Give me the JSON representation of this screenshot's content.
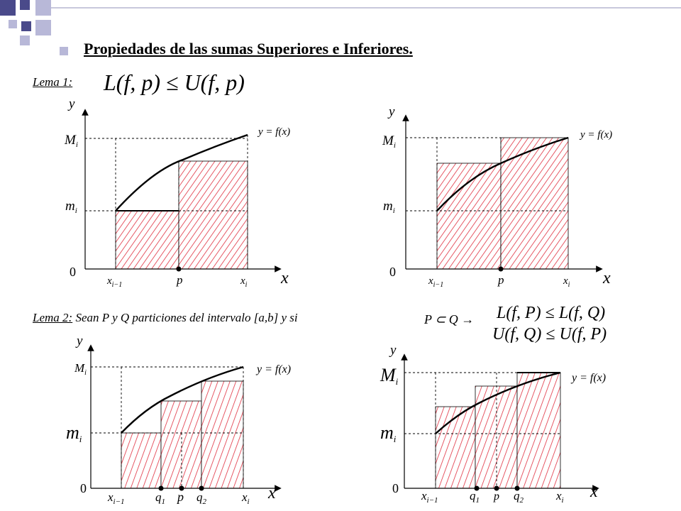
{
  "header": {
    "title": "Propiedades de las sumas Superiores e Inferiores."
  },
  "lema1": {
    "label": "Lema 1:",
    "formula": "L(f, p) ≤ U(f, p)"
  },
  "lema2": {
    "label": "Lema 2:",
    "text": "Sean P y Q  particiones del intervalo [a,b]  y si",
    "condition": "P ⊂ Q →",
    "result1": "L(f, P) ≤ L(f, Q)",
    "result2": "U(f, Q) ≤ U(f, P)"
  },
  "graphs": {
    "y_label": "y",
    "x_label": "x",
    "zero": "0",
    "M_label": "M",
    "m_label": "m",
    "sub_i": "i",
    "func": "y = f(x)",
    "x_prev": "x",
    "x_prev_sub": "i−1",
    "x_i": "x",
    "p": "p",
    "q1": "q",
    "q1_sub": "1",
    "q2": "q",
    "q2_sub": "2"
  },
  "colors": {
    "hatch": "#e03040",
    "bullet": "#b8b8d8",
    "deco_dark": "#4a4a8a",
    "deco_light": "#b8b8d8"
  }
}
